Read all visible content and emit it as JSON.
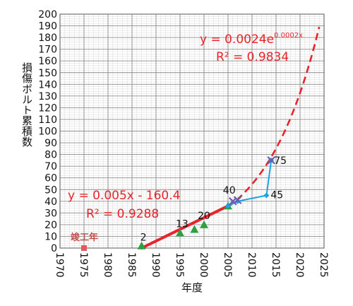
{
  "chart_data": {
    "type": "scatter",
    "xlabel": "年度",
    "ylabel": "損傷ボルト累積数",
    "xlim": [
      1970,
      2025
    ],
    "ylim": [
      0,
      200
    ],
    "x_ticks": [
      "1970",
      "1975",
      "1980",
      "1985",
      "1990",
      "1995",
      "2000",
      "2005",
      "2010",
      "2015",
      "2020",
      "2025"
    ],
    "y_ticks": [
      "0",
      "10",
      "20",
      "30",
      "40",
      "50",
      "60",
      "70",
      "80",
      "90",
      "100",
      "110",
      "120",
      "130",
      "140",
      "150",
      "160",
      "170",
      "180",
      "190",
      "200"
    ],
    "grid": true,
    "minor_grid": true,
    "completion_marker": {
      "label": "竣工年",
      "x": 1975,
      "y": 0,
      "color": "#e05a5a"
    },
    "series": [
      {
        "marker": "triangle",
        "color": "#2ea043",
        "x": [
          1987,
          1995,
          1998,
          2000,
          2005
        ],
        "y": [
          2,
          13,
          16,
          20,
          36
        ]
      },
      {
        "marker": "line+diamond",
        "color": "#1aa3e0",
        "x": [
          2005,
          2007,
          2013,
          2014
        ],
        "y": [
          36,
          40,
          45,
          75
        ]
      },
      {
        "marker": "x",
        "color": "#6b5bb5",
        "x": [
          2006,
          2007,
          2014
        ],
        "y": [
          40,
          41,
          75
        ]
      }
    ],
    "trendlines": [
      {
        "kind": "linear",
        "equation": "y = 0.005x - 160.4",
        "r2": "R² = 0.9288",
        "x_range": [
          1987,
          2005
        ],
        "color": "#e8242a",
        "slope": 2.0,
        "x0": 1987,
        "y0": 0
      },
      {
        "kind": "exponential",
        "equation": "y = 0.0024e",
        "exponent": "0.0002x",
        "r2": "R² = 0.9834",
        "x_range": [
          2005,
          2024
        ],
        "dash": true,
        "color": "#e8242a",
        "a": 35,
        "b": 0.0888,
        "x0": 2005
      }
    ],
    "annotations": [
      {
        "text": "2",
        "x": 1987,
        "y": 2
      },
      {
        "text": "13",
        "x": 1995,
        "y": 13
      },
      {
        "text": "20",
        "x": 2000,
        "y": 20
      },
      {
        "text": "40",
        "x": 2006,
        "y": 40
      },
      {
        "text": "45",
        "x": 2013,
        "y": 45
      },
      {
        "text": "75",
        "x": 2014,
        "y": 75
      }
    ]
  }
}
